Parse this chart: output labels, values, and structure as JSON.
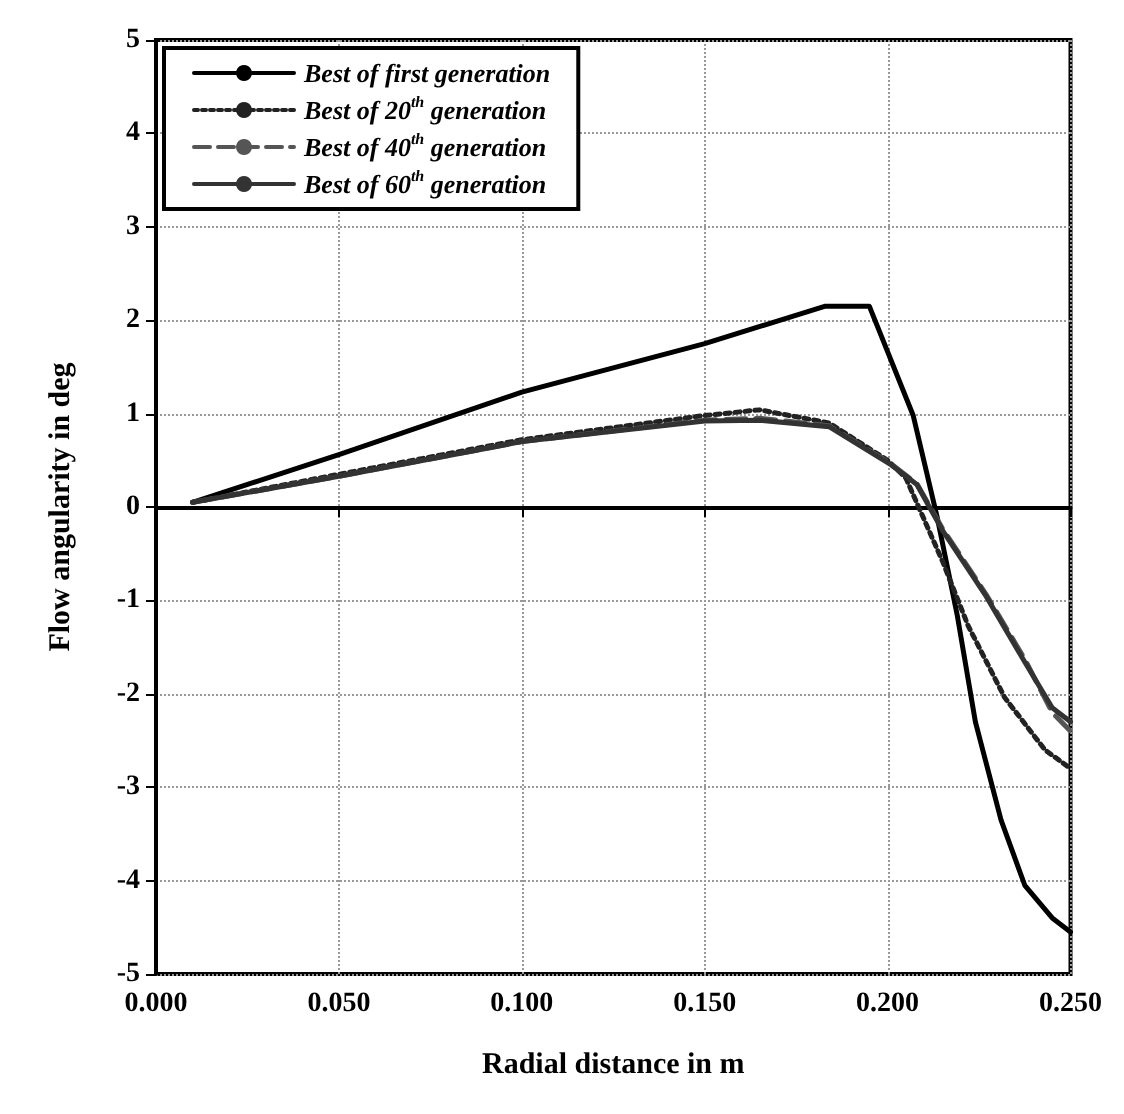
{
  "chart_data": {
    "type": "line",
    "xlabel": "Radial distance in m",
    "ylabel": "Flow angularity in deg",
    "xlim": [
      0,
      0.25
    ],
    "xticks": [
      {
        "value": 0,
        "label": "0.000"
      },
      {
        "value": 0.05,
        "label": "0.050"
      },
      {
        "value": 0.1,
        "label": "0.100"
      },
      {
        "value": 0.15,
        "label": "0.150"
      },
      {
        "value": 0.2,
        "label": "0.200"
      },
      {
        "value": 0.25,
        "label": "0.250"
      }
    ],
    "ylim": [
      -5,
      5
    ],
    "yticks": [
      -5,
      -4,
      -3,
      -2,
      -1,
      0,
      1,
      2,
      3,
      4,
      5
    ],
    "grid": true,
    "legend": "top left",
    "marker": "none",
    "series": [
      {
        "name": "Best of first generation",
        "color": "#000000",
        "line_style": "solid",
        "x": [
          0.01,
          0.05,
          0.1,
          0.15,
          0.183,
          0.195,
          0.207,
          0.2135,
          0.219,
          0.224,
          0.231,
          0.2375,
          0.245,
          0.25
        ],
        "values": [
          0.05,
          0.56,
          1.23,
          1.75,
          2.15,
          2.15,
          0.98,
          -0.1,
          -1.15,
          -2.3,
          -3.35,
          -4.05,
          -4.4,
          -4.55
        ]
      },
      {
        "name": "Best of 20$^{th}$ generation",
        "color": "#222222",
        "line_style": "dotted",
        "x": [
          0.01,
          0.05,
          0.1,
          0.15,
          0.165,
          0.184,
          0.2,
          0.205,
          0.215,
          0.222,
          0.232,
          0.243,
          0.25
        ],
        "values": [
          0.05,
          0.35,
          0.72,
          0.98,
          1.04,
          0.9,
          0.5,
          0.31,
          -0.58,
          -1.27,
          -2.04,
          -2.6,
          -2.8
        ]
      },
      {
        "name": "Best of 40$^{th}$ generation",
        "color": "#555555",
        "line_style": "dashed",
        "x": [
          0.01,
          0.05,
          0.1,
          0.15,
          0.165,
          0.184,
          0.201,
          0.208,
          0.215,
          0.227,
          0.2375,
          0.245,
          0.25
        ],
        "values": [
          0.05,
          0.33,
          0.7,
          0.93,
          0.95,
          0.87,
          0.46,
          0.25,
          -0.23,
          -0.94,
          -1.63,
          -2.2,
          -2.4
        ]
      },
      {
        "name": "Best of 60$^{th}$ generation",
        "color": "#333333",
        "line_style": "solid",
        "x": [
          0.01,
          0.05,
          0.1,
          0.15,
          0.165,
          0.184,
          0.201,
          0.208,
          0.215,
          0.227,
          0.2375,
          0.245,
          0.25
        ],
        "values": [
          0.05,
          0.33,
          0.7,
          0.92,
          0.93,
          0.86,
          0.45,
          0.24,
          -0.25,
          -0.96,
          -1.66,
          -2.15,
          -2.3
        ]
      }
    ]
  }
}
